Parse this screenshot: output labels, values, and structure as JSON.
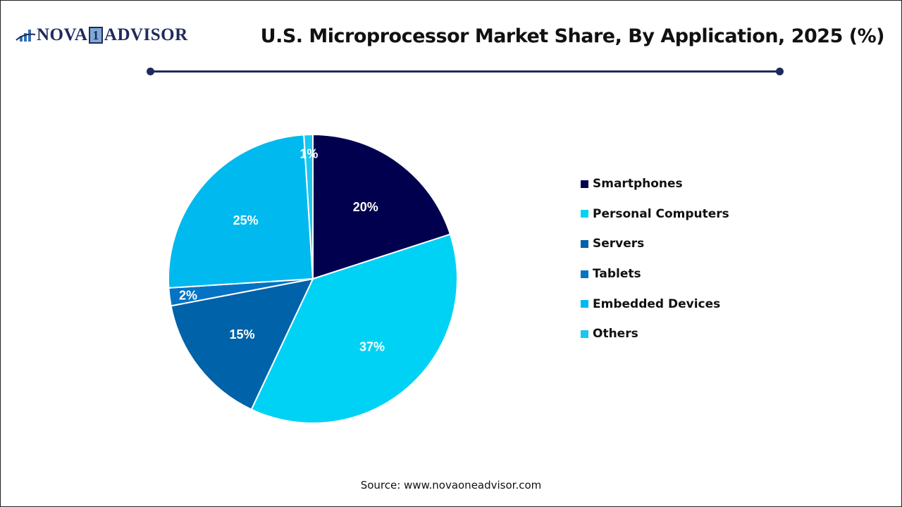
{
  "logo": {
    "text_left": "NOVA",
    "text_num": "1",
    "text_right": "ADVISOR"
  },
  "header": {
    "title": "U.S. Microprocessor Market Share, By Application, 2025 (%)"
  },
  "source": "Source: www.novaoneadvisor.com",
  "chart_data": {
    "type": "pie",
    "title": "U.S. Microprocessor Market Share, By Application, 2025 (%)",
    "categories": [
      "Smartphones",
      "Personal Computers",
      "Servers",
      "Tablets",
      "Embedded Devices",
      "Others"
    ],
    "values": [
      20,
      37,
      15,
      2,
      25,
      1
    ],
    "labels": [
      "20%",
      "37%",
      "15%",
      "2%",
      "25%",
      "1%"
    ],
    "colors": [
      "#00004f",
      "#00d2f5",
      "#0062a8",
      "#0573c4",
      "#00b9ee",
      "#1ac6f2"
    ],
    "legend_position": "right",
    "start_angle": "top, clockwise"
  }
}
